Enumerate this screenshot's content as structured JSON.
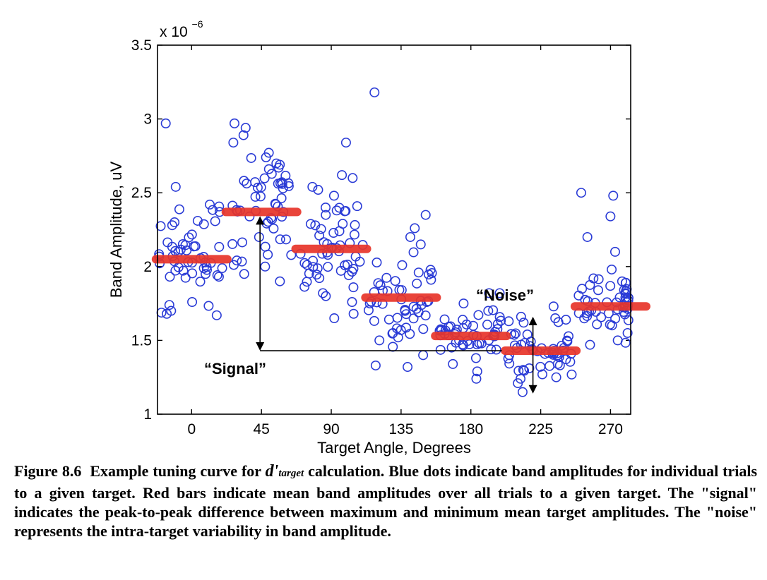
{
  "figure": {
    "caption_label": "Figure 8.6",
    "caption_pre": "Example tuning curve for",
    "caption_symbol": "d'",
    "caption_subscript": "target",
    "caption_post": "calculation. Blue dots indicate band amplitudes for individual trials to a given target. Red bars indicate mean band amplitudes over all trials to a given target. The \"signal\" indicates the peak-to-peak difference between maximum and minimum mean target amplitudes. The \"noise\" represents the intra-target variability in band amplitude."
  },
  "chart_data": {
    "type": "scatter",
    "title": "",
    "xlabel": "Target Angle, Degrees",
    "ylabel": "Band Amplitude, uV",
    "y_exponent_label": "x 10",
    "y_exponent": "−6",
    "xlim": [
      -22,
      283
    ],
    "ylim": [
      1,
      3.5
    ],
    "x_ticks": [
      0,
      45,
      90,
      135,
      180,
      225,
      270
    ],
    "x_tick_labels": [
      "0",
      "45",
      "90",
      "135",
      "180",
      "225",
      "270"
    ],
    "y_ticks": [
      1,
      1.5,
      2,
      2.5,
      3,
      3.5
    ],
    "y_tick_labels": [
      "1",
      "1.5",
      "2",
      "2.5",
      "3",
      "3.5"
    ],
    "grid": false,
    "colors": {
      "trials": "#2a3bd6",
      "means": "#e8352a",
      "axes": "#000000"
    },
    "targets": [
      {
        "angle": 0,
        "mean": 2.05,
        "spread": 0.24,
        "outliers": [
          2.97,
          2.54,
          2.42,
          2.37,
          1.7,
          1.67,
          1.76,
          1.74,
          2.3,
          2.31,
          2.28,
          1.68
        ]
      },
      {
        "angle": 45,
        "mean": 2.37,
        "spread": 0.3,
        "outliers": [
          2.97,
          2.94,
          2.89,
          2.84,
          2.74,
          2.69,
          2.66,
          2.56,
          2.53,
          1.9,
          1.95,
          2.0,
          2.2
        ]
      },
      {
        "angle": 90,
        "mean": 2.12,
        "spread": 0.25,
        "outliers": [
          2.84,
          2.62,
          2.6,
          2.54,
          2.52,
          2.48,
          2.4,
          2.38,
          2.35,
          1.65,
          1.68,
          1.76,
          1.8,
          1.82
        ]
      },
      {
        "angle": 135,
        "mean": 1.79,
        "spread": 0.2,
        "outliers": [
          3.18,
          2.35,
          2.26,
          2.2,
          2.15,
          1.33,
          1.32,
          1.4,
          1.5,
          1.52,
          1.55
        ]
      },
      {
        "angle": 180,
        "mean": 1.53,
        "spread": 0.14,
        "outliers": [
          1.82,
          1.82,
          1.29,
          1.24,
          1.7,
          1.34,
          1.38,
          1.75
        ]
      },
      {
        "angle": 225,
        "mean": 1.43,
        "spread": 0.13,
        "outliers": [
          1.15,
          1.21,
          1.24,
          1.25,
          1.27,
          1.64,
          1.65,
          1.73,
          1.66,
          1.62,
          1.3
        ]
      },
      {
        "angle": 270,
        "mean": 1.73,
        "spread": 0.18,
        "outliers": [
          2.5,
          2.48,
          2.34,
          2.2,
          2.1,
          1.98,
          1.92,
          1.9,
          1.5,
          1.55,
          1.47
        ]
      }
    ],
    "annotations": [
      {
        "text": "“Signal”",
        "from_y": 2.37,
        "to_y": 1.43,
        "at_x": 45
      },
      {
        "text": "“Noise”",
        "from_y": 1.66,
        "to_y": 1.14,
        "at_x": 220
      }
    ]
  }
}
